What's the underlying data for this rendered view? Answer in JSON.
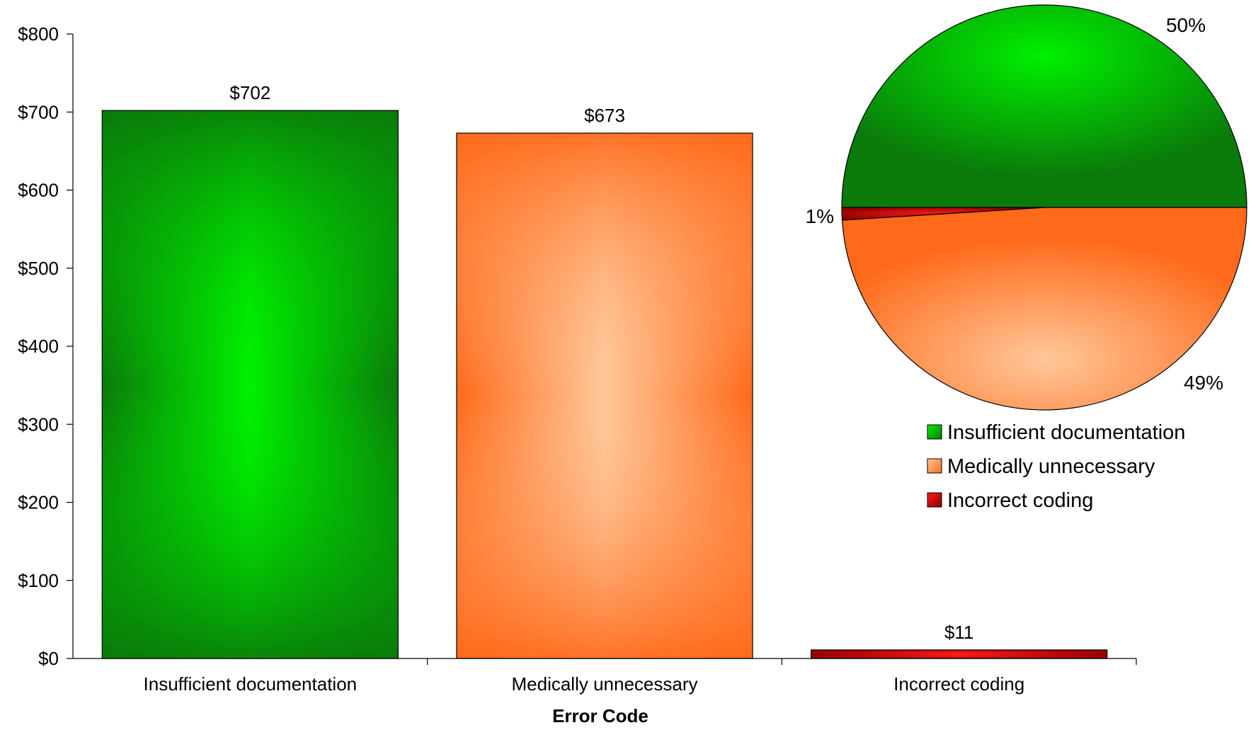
{
  "chart_data": [
    {
      "type": "bar",
      "categories": [
        "Insufficient documentation",
        "Medically unnecessary",
        "Incorrect coding"
      ],
      "values": [
        702,
        673,
        11
      ],
      "data_labels": [
        "$702",
        "$673",
        "$11"
      ],
      "xlabel": "Error Code",
      "ylabel": "",
      "ylim": [
        0,
        800
      ],
      "y_ticks": [
        "$0",
        "$100",
        "$200",
        "$300",
        "$400",
        "$500",
        "$600",
        "$700",
        "$800"
      ],
      "grid": false
    },
    {
      "type": "pie",
      "labels": [
        "Insufficient documentation",
        "Medically unnecessary",
        "Incorrect coding"
      ],
      "values": [
        50,
        49,
        1
      ],
      "data_labels": [
        "50%",
        "49%",
        "1%"
      ],
      "legend": {
        "placement": "bottom-right",
        "entries": [
          "Insufficient documentation",
          "Medically unnecessary",
          "Incorrect coding"
        ]
      }
    }
  ],
  "colors": {
    "green_edge": "#0a7a0a",
    "green_center": "#00f000",
    "orange_edge": "#ff6a1a",
    "orange_center": "#ffc79a",
    "red_edge": "#8c0000",
    "red_center": "#ff1a1a"
  }
}
